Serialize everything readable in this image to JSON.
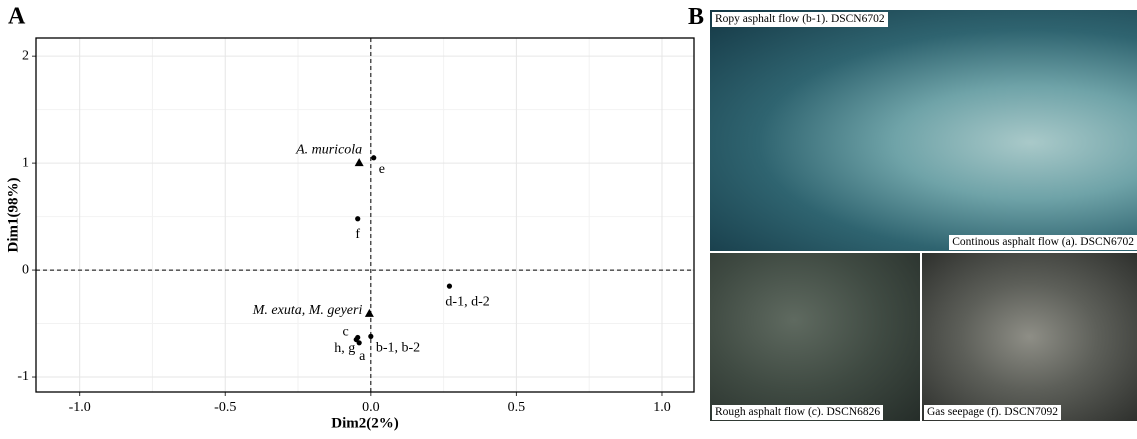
{
  "chart_data": {
    "type": "scatter",
    "panel_label": "A",
    "xlabel": "Dim2(2%)",
    "ylabel": "Dim1(98%)",
    "xlim": [
      -1.15,
      1.11
    ],
    "ylim": [
      -1.14,
      2.17
    ],
    "xticks": [
      {
        "value": -1,
        "label": "-1.0"
      },
      -0.5,
      {
        "value": 0,
        "label": "0.0"
      },
      0.5,
      {
        "value": 1,
        "label": "1.0"
      }
    ],
    "yticks": [
      -1,
      0,
      1,
      2
    ],
    "x_minor_ticks": [
      -0.75,
      -0.25,
      0.25,
      0.75
    ],
    "y_minor_ticks": [
      -0.5,
      0.5,
      1.5
    ],
    "grid": true,
    "color": "#000000",
    "sites": [
      {
        "label": "e",
        "x": 0.01,
        "y": 1.05
      },
      {
        "label": "f",
        "x": -0.045,
        "y": 0.48
      },
      {
        "label": "d-1, d-2",
        "x": 0.27,
        "y": -0.15
      },
      {
        "label": "c",
        "x": -0.045,
        "y": -0.63
      },
      {
        "label": "h, g",
        "x": -0.05,
        "y": -0.65
      },
      {
        "label": "a",
        "x": -0.04,
        "y": -0.68
      },
      {
        "label": "b-1, b-2",
        "x": 0.0,
        "y": -0.62
      }
    ],
    "species": [
      {
        "label": "A. muricola",
        "x": -0.04,
        "y": 1.0
      },
      {
        "label": "M. exuta, M. geyeri",
        "x": -0.005,
        "y": -0.41
      }
    ]
  },
  "panel_b": {
    "label": "B",
    "captions": [
      "Ropy asphalt flow (b-1). DSCN6702",
      "Continous asphalt flow (a). DSCN6702",
      "Rough asphalt flow (c). DSCN6826",
      "Gas seepage (f). DSCN7092"
    ]
  }
}
